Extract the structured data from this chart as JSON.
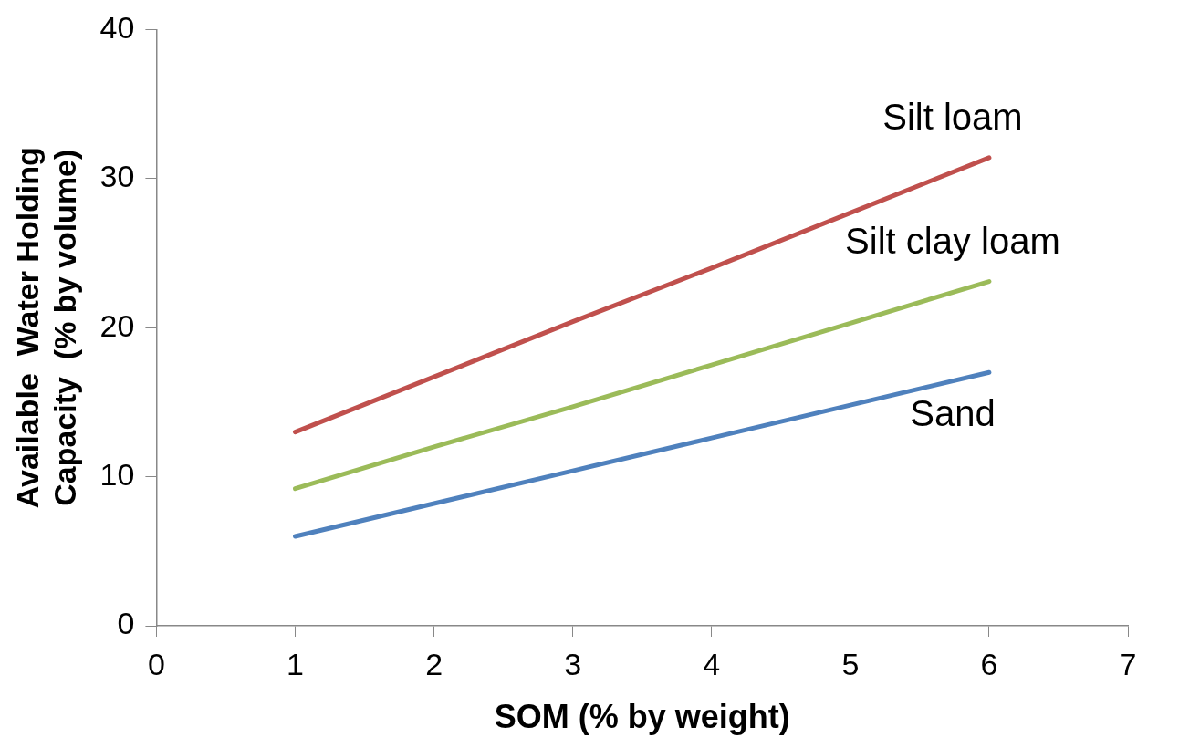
{
  "chart_data": {
    "type": "line",
    "xlabel": "SOM (% by weight)",
    "ylabel": "Available  Water Holding Capacity  (% by volume)",
    "x": [
      1,
      2,
      3,
      4,
      5,
      6
    ],
    "series": [
      {
        "name": "Silt loam",
        "color": "#c0504d",
        "values": [
          13.0,
          16.7,
          20.4,
          24.0,
          27.7,
          31.4
        ]
      },
      {
        "name": "Silt clay loam",
        "color": "#9bbb59",
        "values": [
          9.2,
          12.0,
          14.7,
          17.5,
          20.3,
          23.1
        ]
      },
      {
        "name": "Sand",
        "color": "#4f81bd",
        "values": [
          6.0,
          8.2,
          10.4,
          12.6,
          14.8,
          17.0
        ]
      }
    ],
    "xlim": [
      0,
      7
    ],
    "xticks": [
      0,
      1,
      2,
      3,
      4,
      5,
      6,
      7
    ],
    "ylim": [
      0,
      40
    ],
    "yticks": [
      0,
      10,
      20,
      30,
      40
    ],
    "grid": false,
    "legend": false,
    "marker": "none",
    "line_style": "solid"
  }
}
